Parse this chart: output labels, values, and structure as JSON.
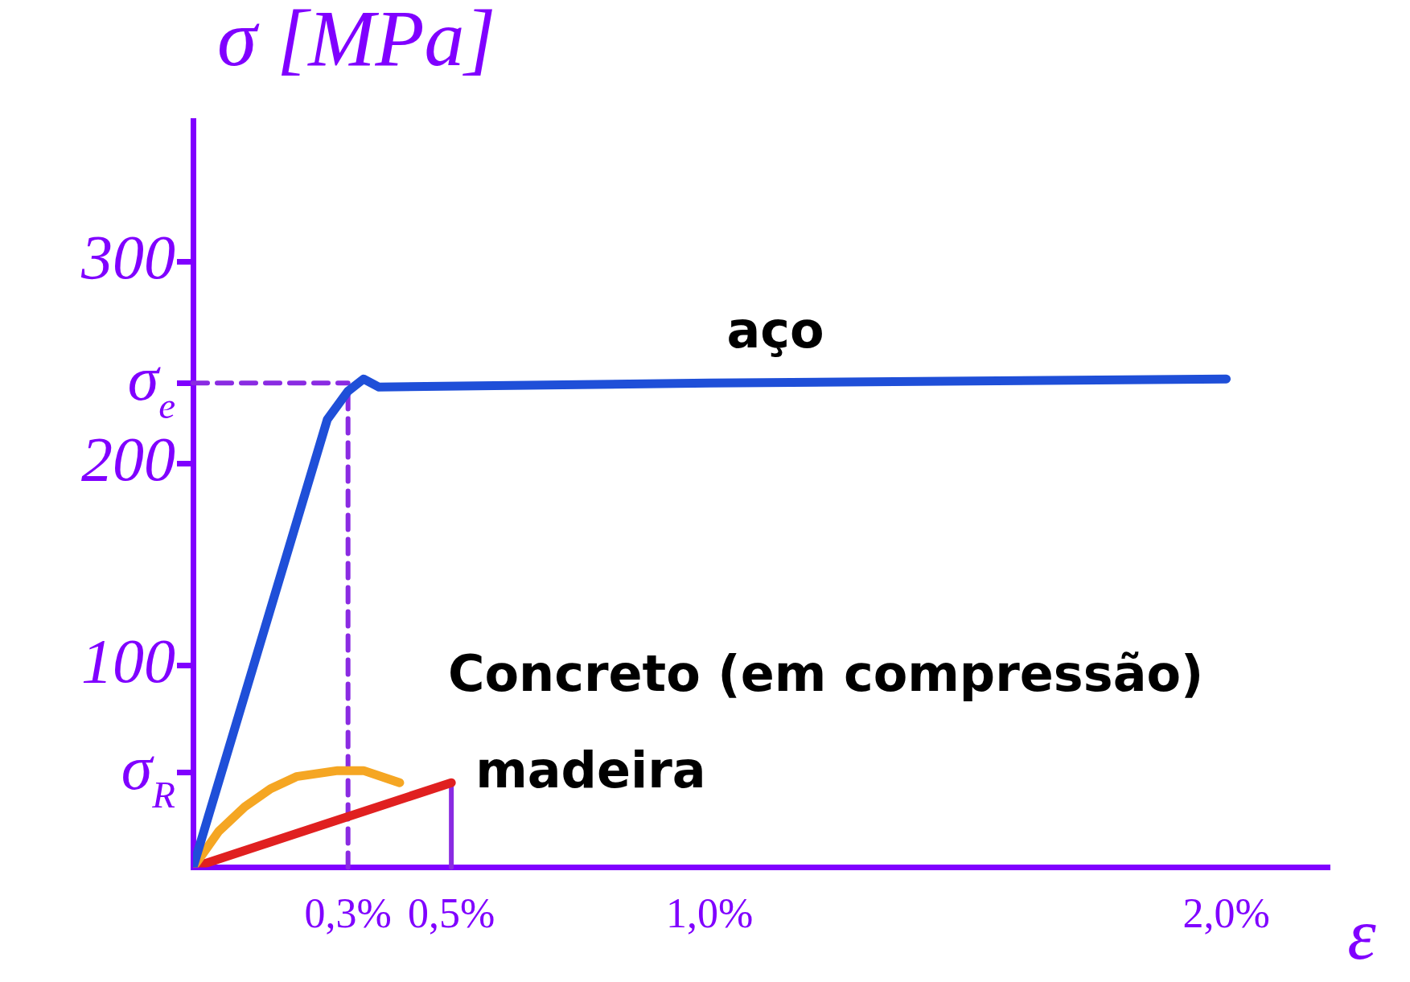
{
  "chart_data": {
    "type": "line",
    "xlabel": "ε",
    "ylabel": "σ [MPa]",
    "xlim": [
      0,
      2.2
    ],
    "ylim": [
      0,
      370
    ],
    "xticks": [
      {
        "value": 0.3,
        "label": "0,3%"
      },
      {
        "value": 0.5,
        "label": "0,5%"
      },
      {
        "value": 1.0,
        "label": "1,0%"
      },
      {
        "value": 2.0,
        "label": "2,0%"
      }
    ],
    "yticks": [
      {
        "value": 47,
        "label": "σ$_{R}$"
      },
      100,
      200,
      {
        "value": 240,
        "label": "σ$_{e}$"
      },
      300
    ],
    "grid": false,
    "legend": false,
    "marker": "none",
    "line_style": "solid",
    "series": [
      {
        "name": "aço",
        "color": "#1f4fd8",
        "x": [
          0,
          0.26,
          0.3,
          0.33,
          0.36,
          1.0,
          2.0
        ],
        "values": [
          0,
          222,
          236,
          242,
          238,
          240,
          242
        ]
      },
      {
        "name": "Concreto (em compressão)",
        "color": "#f5a623",
        "x": [
          0,
          0.05,
          0.1,
          0.15,
          0.2,
          0.28,
          0.33,
          0.4
        ],
        "values": [
          0,
          18,
          30,
          39,
          45,
          48,
          48,
          42
        ]
      },
      {
        "name": "madeira",
        "color": "#e02020",
        "x": [
          0,
          0.5
        ],
        "values": [
          0,
          42
        ]
      }
    ],
    "ref_lines": [
      {
        "axis": "y",
        "value": 240,
        "color": "#8a2be2",
        "line_style": "dashed"
      },
      {
        "axis": "x",
        "value": 0.3,
        "color": "#8a2be2",
        "line_style": "dashed"
      },
      {
        "axis": "x",
        "value": 0.5,
        "color": "#8a2be2",
        "line_style": "solid"
      }
    ]
  }
}
